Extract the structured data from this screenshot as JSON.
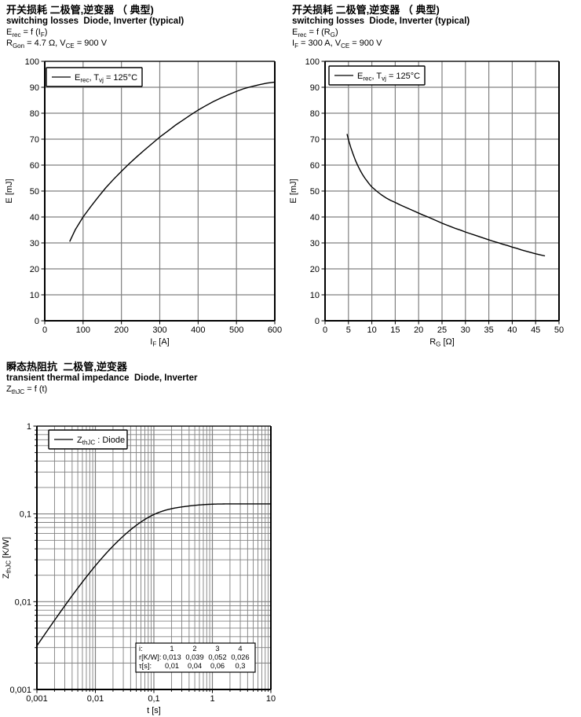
{
  "colors": {
    "background": "#ffffff",
    "grid": "#808080",
    "axis": "#000000",
    "curve": "#000000",
    "text": "#000000"
  },
  "chart_data": [
    {
      "type": "line",
      "title_cn": "开关损耗 二极管,逆变器 （ 典型)",
      "title_en": "switching losses  Diode, Inverter (typical)",
      "formula": "E_{rec} = f (I_{F})",
      "conditions": "R_{Gon} = 4.7 Ω, V_{CE} = 900 V",
      "legend": "E_{rec}, T_{vj} = 125°C",
      "xlabel": "I_{F} [A]",
      "ylabel": "E [mJ]",
      "xscale": "linear",
      "yscale": "linear",
      "xlim": [
        0,
        600
      ],
      "ylim": [
        0,
        100
      ],
      "xticks": [
        0,
        100,
        200,
        300,
        400,
        500,
        600
      ],
      "yticks": [
        0,
        10,
        20,
        30,
        40,
        50,
        60,
        70,
        80,
        90,
        100
      ],
      "grid": true,
      "legend_position": "top-left",
      "series": [
        {
          "name": "E_{rec}, T_{vj} = 125°C",
          "points": [
            [
              65,
              30.5
            ],
            [
              80,
              35.2
            ],
            [
              100,
              40
            ],
            [
              120,
              44
            ],
            [
              140,
              47.8
            ],
            [
              160,
              51.4
            ],
            [
              180,
              54.6
            ],
            [
              200,
              57.6
            ],
            [
              220,
              60.5
            ],
            [
              240,
              63.2
            ],
            [
              260,
              65.8
            ],
            [
              280,
              68.3
            ],
            [
              300,
              70.8
            ],
            [
              320,
              73
            ],
            [
              340,
              75.3
            ],
            [
              360,
              77.3
            ],
            [
              380,
              79.3
            ],
            [
              400,
              81.2
            ],
            [
              420,
              82.9
            ],
            [
              440,
              84.5
            ],
            [
              460,
              85.9
            ],
            [
              480,
              87.2
            ],
            [
              500,
              88.4
            ],
            [
              520,
              89.5
            ],
            [
              540,
              90.3
            ],
            [
              560,
              91
            ],
            [
              580,
              91.6
            ],
            [
              600,
              92
            ]
          ]
        }
      ]
    },
    {
      "type": "line",
      "title_cn": "开关损耗 二极管,逆变器 （ 典型)",
      "title_en": "switching losses  Diode, Inverter (typical)",
      "formula": "E_{rec} = f (R_{G})",
      "conditions": "I_{F} = 300 A, V_{CE} = 900 V",
      "legend": "E_{rec}, T_{vj} = 125°C",
      "xlabel": "R_{G} [Ω]",
      "ylabel": "E [mJ]",
      "xscale": "linear",
      "yscale": "linear",
      "xlim": [
        0,
        50
      ],
      "ylim": [
        0,
        100
      ],
      "xticks": [
        0,
        5,
        10,
        15,
        20,
        25,
        30,
        35,
        40,
        45,
        50
      ],
      "yticks": [
        0,
        10,
        20,
        30,
        40,
        50,
        60,
        70,
        80,
        90,
        100
      ],
      "grid": true,
      "legend_position": "top-left",
      "series": [
        {
          "name": "E_{rec}, T_{vj} = 125°C",
          "points": [
            [
              4.7,
              72
            ],
            [
              5,
              69.8
            ],
            [
              5.5,
              66.8
            ],
            [
              6,
              64.2
            ],
            [
              6.5,
              61.8
            ],
            [
              7,
              59.8
            ],
            [
              7.5,
              58
            ],
            [
              8,
              56.4
            ],
            [
              8.5,
              55
            ],
            [
              9,
              53.8
            ],
            [
              9.5,
              52.6
            ],
            [
              10,
              51.6
            ],
            [
              11,
              50
            ],
            [
              12,
              48.6
            ],
            [
              13,
              47.4
            ],
            [
              14,
              46.4
            ],
            [
              15,
              45.6
            ],
            [
              16,
              44.7
            ],
            [
              17,
              43.9
            ],
            [
              18,
              43.1
            ],
            [
              19,
              42.3
            ],
            [
              20,
              41.5
            ],
            [
              21,
              40.7
            ],
            [
              22,
              40
            ],
            [
              23,
              39.2
            ],
            [
              24,
              38.4
            ],
            [
              25,
              37.6
            ],
            [
              26,
              36.9
            ],
            [
              27,
              36.2
            ],
            [
              28,
              35.5
            ],
            [
              29,
              34.9
            ],
            [
              30,
              34.2
            ],
            [
              31,
              33.6
            ],
            [
              32,
              33
            ],
            [
              33,
              32.4
            ],
            [
              34,
              31.8
            ],
            [
              35,
              31.2
            ],
            [
              36,
              30.6
            ],
            [
              37,
              30.1
            ],
            [
              38,
              29.5
            ],
            [
              39,
              29
            ],
            [
              40,
              28.4
            ],
            [
              41,
              27.9
            ],
            [
              42,
              27.3
            ],
            [
              43,
              26.8
            ],
            [
              44,
              26.3
            ],
            [
              45,
              25.8
            ],
            [
              46,
              25.4
            ],
            [
              47,
              25
            ]
          ]
        }
      ]
    },
    {
      "type": "line",
      "title_cn": "瞬态热阻抗  二极管,逆变器",
      "title_en": "transient thermal impedance  Diode, Inverter",
      "formula": "Z_{thJC} = f (t)",
      "legend": "Z_{thJC} : Diode",
      "xlabel": "t [s]",
      "ylabel": "Z_{thJC} [K/W]",
      "xscale": "log",
      "yscale": "log",
      "xlim": [
        0.001,
        10
      ],
      "ylim": [
        0.001,
        1
      ],
      "xticks": [
        0.001,
        0.01,
        0.1,
        1,
        10
      ],
      "xtick_labels": [
        "0,001",
        "0,01",
        "0,1",
        "1",
        "10"
      ],
      "yticks": [
        0.001,
        0.01,
        0.1,
        1
      ],
      "ytick_labels": [
        "0,001",
        "0,01",
        "0,1",
        "1"
      ],
      "grid": true,
      "legend_position": "top-left",
      "series": [
        {
          "name": "Z_{thJC} : Diode",
          "model": {
            "r": [
              0.013,
              0.039,
              0.052,
              0.026
            ],
            "tau": [
              0.01,
              0.04,
              0.06,
              0.3
            ]
          }
        }
      ],
      "table": {
        "rows": [
          [
            "i:",
            "1",
            "2",
            "3",
            "4"
          ],
          [
            "r[K/W]:",
            "0,013",
            "0,039",
            "0,052",
            "0,026"
          ],
          [
            "τ[s]:",
            "0,01",
            "0,04",
            "0,06",
            "0,3"
          ]
        ]
      }
    }
  ]
}
